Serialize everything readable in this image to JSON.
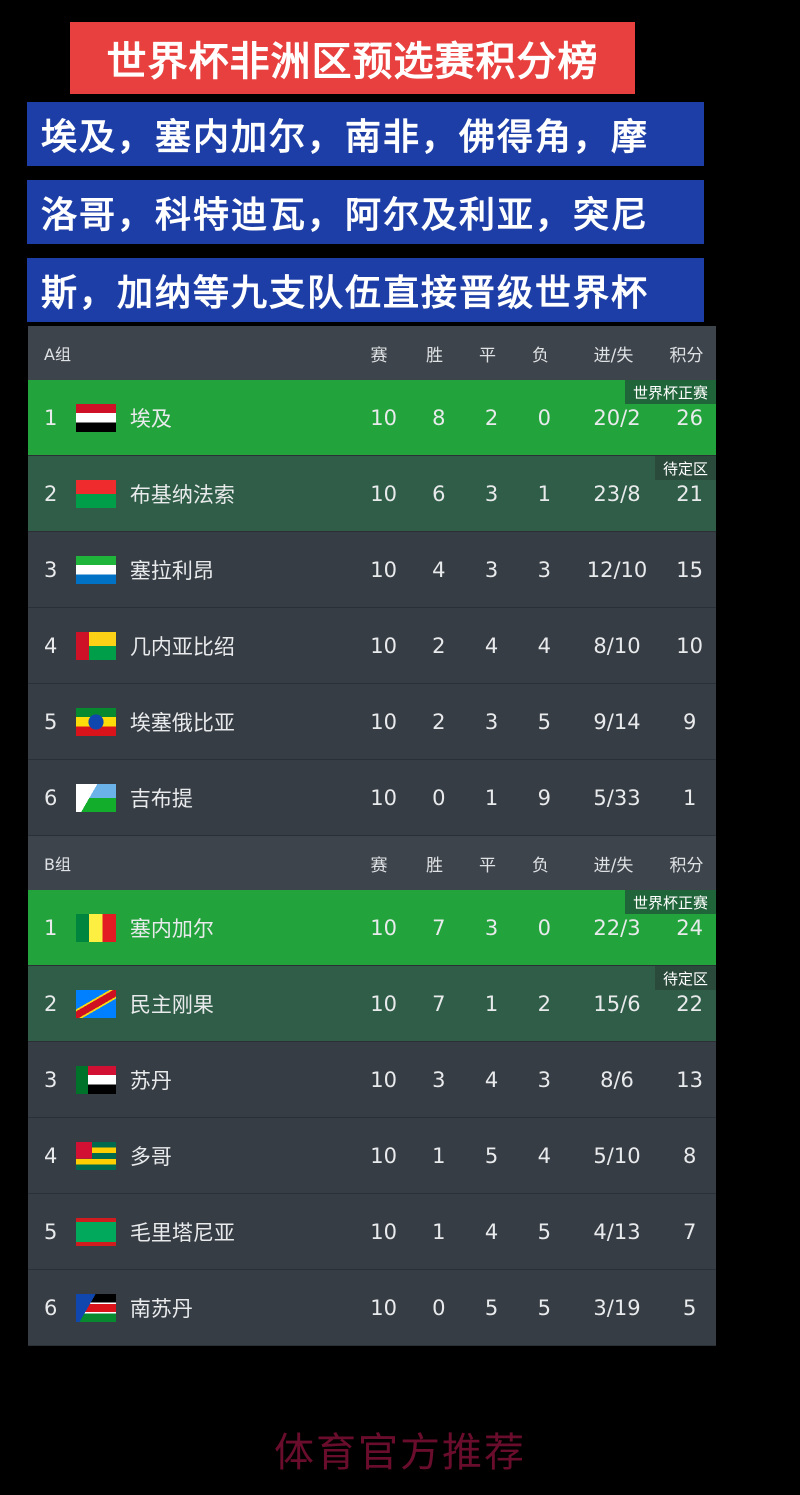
{
  "title": "世界杯非洲区预选赛积分榜",
  "subtitle_lines": [
    "埃及，塞内加尔，南非，佛得角，摩",
    "洛哥，科特迪瓦，阿尔及利亚，突尼",
    "斯，加纳等九支队伍直接晋级世界杯"
  ],
  "columns": [
    "赛",
    "胜",
    "平",
    "负",
    "进/失",
    "积分"
  ],
  "tags": {
    "qualified": "世界杯正赛",
    "pending": "待定区"
  },
  "colors": {
    "qualified": "#22a33b",
    "pending": "#2f5d47",
    "title_bg": "#e8403e",
    "subtitle_bg": "#1d3ea6"
  },
  "groups": [
    {
      "name": "A组",
      "teams": [
        {
          "rank": "1",
          "flag": "egypt-flag",
          "name": "埃及",
          "p": "10",
          "w": "8",
          "d": "2",
          "l": "0",
          "gd": "20/2",
          "pts": "26",
          "status": "qualified"
        },
        {
          "rank": "2",
          "flag": "burkina-faso-flag",
          "name": "布基纳法索",
          "p": "10",
          "w": "6",
          "d": "3",
          "l": "1",
          "gd": "23/8",
          "pts": "21",
          "status": "pending"
        },
        {
          "rank": "3",
          "flag": "sierra-leone-flag",
          "name": "塞拉利昂",
          "p": "10",
          "w": "4",
          "d": "3",
          "l": "3",
          "gd": "12/10",
          "pts": "15",
          "status": ""
        },
        {
          "rank": "4",
          "flag": "guinea-bissau-flag",
          "name": "几内亚比绍",
          "p": "10",
          "w": "2",
          "d": "4",
          "l": "4",
          "gd": "8/10",
          "pts": "10",
          "status": ""
        },
        {
          "rank": "5",
          "flag": "ethiopia-flag",
          "name": "埃塞俄比亚",
          "p": "10",
          "w": "2",
          "d": "3",
          "l": "5",
          "gd": "9/14",
          "pts": "9",
          "status": ""
        },
        {
          "rank": "6",
          "flag": "djibouti-flag",
          "name": "吉布提",
          "p": "10",
          "w": "0",
          "d": "1",
          "l": "9",
          "gd": "5/33",
          "pts": "1",
          "status": ""
        }
      ]
    },
    {
      "name": "B组",
      "teams": [
        {
          "rank": "1",
          "flag": "senegal-flag",
          "name": "塞内加尔",
          "p": "10",
          "w": "7",
          "d": "3",
          "l": "0",
          "gd": "22/3",
          "pts": "24",
          "status": "qualified"
        },
        {
          "rank": "2",
          "flag": "dr-congo-flag",
          "name": "民主刚果",
          "p": "10",
          "w": "7",
          "d": "1",
          "l": "2",
          "gd": "15/6",
          "pts": "22",
          "status": "pending"
        },
        {
          "rank": "3",
          "flag": "sudan-flag",
          "name": "苏丹",
          "p": "10",
          "w": "3",
          "d": "4",
          "l": "3",
          "gd": "8/6",
          "pts": "13",
          "status": ""
        },
        {
          "rank": "4",
          "flag": "togo-flag",
          "name": "多哥",
          "p": "10",
          "w": "1",
          "d": "5",
          "l": "4",
          "gd": "5/10",
          "pts": "8",
          "status": ""
        },
        {
          "rank": "5",
          "flag": "mauritania-flag",
          "name": "毛里塔尼亚",
          "p": "10",
          "w": "1",
          "d": "4",
          "l": "5",
          "gd": "4/13",
          "pts": "7",
          "status": ""
        },
        {
          "rank": "6",
          "flag": "south-sudan-flag",
          "name": "南苏丹",
          "p": "10",
          "w": "0",
          "d": "5",
          "l": "5",
          "gd": "3/19",
          "pts": "5",
          "status": ""
        }
      ]
    }
  ],
  "footer": "体育官方推荐"
}
